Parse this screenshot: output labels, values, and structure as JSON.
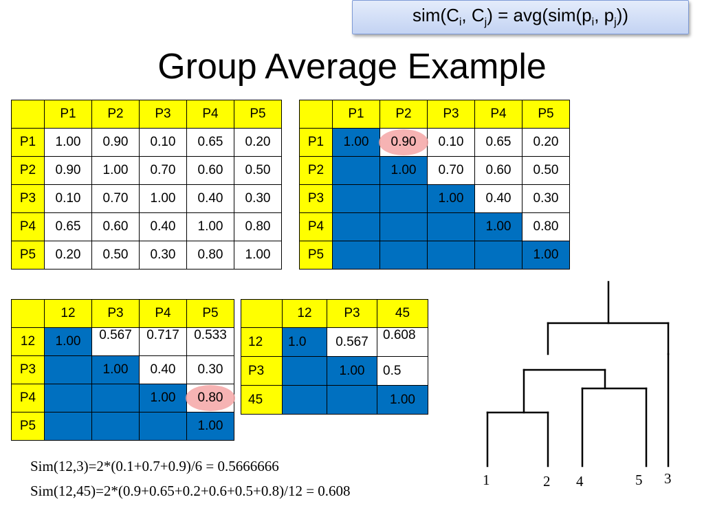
{
  "formula": {
    "prefix": "sim(C",
    "i": "i",
    "mid1": ", C",
    "j": "j",
    "mid2": ") = avg(sim(p",
    "pi": "i",
    "mid3": ", p",
    "pj": "j",
    "suffix": "))"
  },
  "title": "Group Average Example",
  "table1": {
    "header": [
      "",
      "P1",
      "P2",
      "P3",
      "P4",
      "P5"
    ],
    "rows": [
      {
        "label": "P1",
        "cells": [
          "1.00",
          "0.90",
          "0.10",
          "0.65",
          "0.20"
        ]
      },
      {
        "label": "P2",
        "cells": [
          "0.90",
          "1.00",
          "0.70",
          "0.60",
          "0.50"
        ]
      },
      {
        "label": "P3",
        "cells": [
          "0.10",
          "0.70",
          "1.00",
          "0.40",
          "0.30"
        ]
      },
      {
        "label": "P4",
        "cells": [
          "0.65",
          "0.60",
          "0.40",
          "1.00",
          "0.80"
        ]
      },
      {
        "label": "P5",
        "cells": [
          "0.20",
          "0.50",
          "0.30",
          "0.80",
          "1.00"
        ]
      }
    ]
  },
  "table2": {
    "header": [
      "",
      "P1",
      "P2",
      "P3",
      "P4",
      "P5"
    ],
    "rows": [
      {
        "label": "P1",
        "cells": [
          "1.00",
          "0.90",
          "0.10",
          "0.65",
          "0.20"
        ]
      },
      {
        "label": "P2",
        "cells": [
          "",
          "1.00",
          "0.70",
          "0.60",
          "0.50"
        ]
      },
      {
        "label": "P3",
        "cells": [
          "",
          "",
          "1.00",
          "0.40",
          "0.30"
        ]
      },
      {
        "label": "P4",
        "cells": [
          "",
          "",
          "",
          "1.00",
          "0.80"
        ]
      },
      {
        "label": "P5",
        "cells": [
          "",
          "",
          "",
          "",
          "1.00"
        ]
      }
    ],
    "highlight": "0.90"
  },
  "table3": {
    "header": [
      "",
      "12",
      "P3",
      "P4",
      "P5"
    ],
    "rows": [
      {
        "label": "12",
        "cells": [
          "1.00",
          "0.567",
          "0.717",
          "0.533"
        ]
      },
      {
        "label": "P3",
        "cells": [
          "",
          "1.00",
          "0.40",
          "0.30"
        ]
      },
      {
        "label": "P4",
        "cells": [
          "",
          "",
          "1.00",
          "0.80"
        ]
      },
      {
        "label": "P5",
        "cells": [
          "",
          "",
          "",
          "1.00"
        ]
      }
    ],
    "highlight": "0.80"
  },
  "table4": {
    "header": [
      "",
      "12",
      "P3",
      "45"
    ],
    "rows": [
      {
        "label": "12",
        "cells": [
          "1.0",
          "0.567",
          "0.608"
        ]
      },
      {
        "label": "P3",
        "cells": [
          "",
          "1.00",
          "0.5"
        ]
      },
      {
        "label": "45",
        "cells": [
          "",
          "",
          "1.00"
        ]
      }
    ]
  },
  "calculations": {
    "line1": "Sim(12,3)=2*(0.1+0.7+0.9)/6 = 0.5666666",
    "line2": "Sim(12,45)=2*(0.9+0.65+0.2+0.6+0.5+0.8)/12 = 0.608"
  },
  "dendrogram": {
    "leaves": [
      "1",
      "2",
      "4",
      "5",
      "3"
    ]
  },
  "colors": {
    "header": "#ffff00",
    "diagonal": "#0070c0",
    "highlight": "#f4a6a6"
  }
}
